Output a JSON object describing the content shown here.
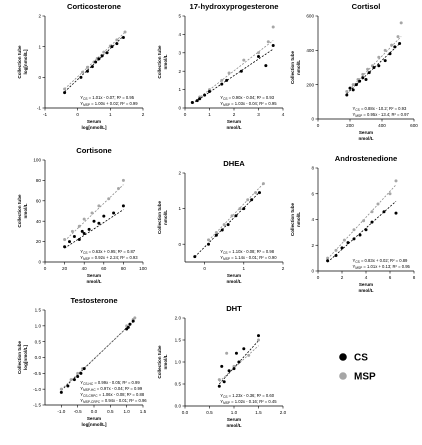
{
  "legend": {
    "items": [
      {
        "label": "CS",
        "color": "#000000"
      },
      {
        "label": "MSP",
        "color": "#a6a6a6"
      }
    ]
  },
  "chart_data": [
    {
      "type": "scatter",
      "title": "Corticosterone",
      "xlabel": [
        "Serum",
        "log[nmol/L]"
      ],
      "ylabel": [
        "Collection tube",
        "log[nmol/L]"
      ],
      "xlim": [
        -1,
        2
      ],
      "ylim": [
        -1,
        2
      ],
      "xticks": [
        -1,
        0,
        1,
        2
      ],
      "yticks": [
        -1,
        0,
        1,
        2
      ],
      "equations": [
        "Y_CS = 1.01x - 0.07; R² = 0.95",
        "Y_MSP = 1.00x + 0.02; R² = 0.99"
      ],
      "series": [
        {
          "name": "CS",
          "slope": 1.01,
          "intercept": -0.07,
          "x": [
            -0.4,
            0.1,
            0.3,
            0.45,
            0.55,
            0.65,
            0.75,
            0.9,
            1.05,
            1.2,
            1.4
          ],
          "y": [
            -0.5,
            0.0,
            0.2,
            0.35,
            0.5,
            0.6,
            0.7,
            0.8,
            1.0,
            1.1,
            1.3
          ]
        },
        {
          "name": "MSP",
          "slope": 1.0,
          "intercept": 0.02,
          "x": [
            -0.4,
            0.15,
            0.3,
            0.5,
            0.6,
            0.8,
            1.0,
            1.2,
            1.45
          ],
          "y": [
            -0.38,
            0.17,
            0.33,
            0.5,
            0.62,
            0.82,
            1.02,
            1.22,
            1.48
          ]
        }
      ]
    },
    {
      "type": "scatter",
      "title": "17-hydroxyprogesterone",
      "xlabel": [
        "Serum",
        "nmol/L"
      ],
      "ylabel": [
        "Collection tube",
        "nmol/L"
      ],
      "xlim": [
        0,
        4
      ],
      "ylim": [
        0,
        5
      ],
      "xticks": [
        0,
        1,
        2,
        3,
        4
      ],
      "yticks": [
        0,
        1,
        2,
        3,
        4,
        5
      ],
      "equations": [
        "Y_CS = 0.90x - 0.04; R² = 0.93",
        "Y_MSP = 1.03x - 0.04; R² = 0.95"
      ],
      "series": [
        {
          "name": "CS",
          "slope": 0.9,
          "intercept": -0.04,
          "x": [
            0.3,
            0.5,
            0.6,
            0.8,
            1.0,
            1.5,
            1.7,
            2.3,
            3.0,
            3.3,
            3.6
          ],
          "y": [
            0.3,
            0.4,
            0.5,
            0.7,
            0.9,
            1.3,
            1.5,
            2.0,
            2.8,
            2.3,
            3.4
          ]
        },
        {
          "name": "MSP",
          "slope": 1.03,
          "intercept": -0.04,
          "x": [
            0.3,
            0.6,
            1.0,
            1.5,
            1.8,
            2.4,
            3.0,
            3.4,
            3.6
          ],
          "y": [
            0.3,
            0.6,
            1.0,
            1.5,
            1.9,
            2.6,
            3.0,
            3.6,
            4.4
          ]
        }
      ]
    },
    {
      "type": "scatter",
      "title": "Cortisol",
      "xlabel": [
        "Serum",
        "nmol/L"
      ],
      "ylabel": [
        "Collection tube",
        "nmol/L"
      ],
      "xlim": [
        0,
        600
      ],
      "ylim": [
        0,
        600
      ],
      "xticks": [
        0,
        200,
        400,
        600
      ],
      "yticks": [
        0,
        200,
        400,
        600
      ],
      "equations": [
        "Y_CS = 0.88x - 10.2; R² = 0.93",
        "Y_MSP = 0.95x - 13.4; R² = 0.97"
      ],
      "series": [
        {
          "name": "CS",
          "slope": 0.88,
          "intercept": -10.2,
          "x": [
            180,
            200,
            220,
            240,
            260,
            280,
            300,
            320,
            350,
            380,
            420,
            450,
            480,
            510
          ],
          "y": [
            140,
            180,
            170,
            200,
            220,
            240,
            230,
            270,
            300,
            310,
            340,
            380,
            420,
            440
          ]
        },
        {
          "name": "MSP",
          "slope": 0.95,
          "intercept": -13.4,
          "x": [
            180,
            220,
            250,
            280,
            310,
            340,
            380,
            420,
            460,
            500,
            520
          ],
          "y": [
            160,
            200,
            230,
            260,
            290,
            310,
            360,
            400,
            430,
            480,
            560
          ]
        }
      ]
    },
    {
      "type": "scatter",
      "title": "Cortisone",
      "xlabel": [
        "Serum",
        "nmol/L"
      ],
      "ylabel": [
        "Collection tube",
        "nmol/L"
      ],
      "xlim": [
        0,
        100
      ],
      "ylim": [
        0,
        100
      ],
      "xticks": [
        0,
        20,
        40,
        60,
        80,
        100
      ],
      "yticks": [
        0,
        20,
        40,
        60,
        80,
        100
      ],
      "equations": [
        "Y_CS = 0.63x + 0.95; R² = 0.87",
        "Y_MSP = 0.92x + 2.24; R² = 0.93"
      ],
      "series": [
        {
          "name": "CS",
          "slope": 0.63,
          "intercept": 0.95,
          "x": [
            20,
            25,
            30,
            35,
            38,
            40,
            45,
            50,
            55,
            60,
            70,
            80
          ],
          "y": [
            15,
            20,
            25,
            22,
            30,
            28,
            32,
            40,
            38,
            45,
            48,
            55
          ]
        },
        {
          "name": "MSP",
          "slope": 0.92,
          "intercept": 2.24,
          "x": [
            20,
            28,
            35,
            40,
            48,
            55,
            65,
            75,
            80
          ],
          "y": [
            22,
            30,
            35,
            42,
            48,
            55,
            62,
            72,
            80
          ]
        }
      ]
    },
    {
      "type": "scatter",
      "title": "DHEA",
      "xlabel": [
        "Serum",
        "nmol/L"
      ],
      "ylabel": [
        "Collection tube",
        "nmol/L"
      ],
      "xlim": [
        -0.5,
        2
      ],
      "ylim": [
        -0.5,
        2
      ],
      "xticks": [
        0,
        1,
        2
      ],
      "yticks": [
        0,
        1,
        2
      ],
      "equations": [
        "Y_CS = 1.10x - 0.08; R² = 0.98",
        "Y_MSP = 1.14x - 0.01; R² = 0.90"
      ],
      "series": [
        {
          "name": "CS",
          "slope": 1.1,
          "intercept": -0.08,
          "x": [
            -0.25,
            0.1,
            0.3,
            0.45,
            0.6,
            0.8,
            1.0,
            1.2,
            1.4
          ],
          "y": [
            -0.35,
            0.0,
            0.25,
            0.4,
            0.55,
            0.8,
            1.0,
            1.25,
            1.45
          ]
        },
        {
          "name": "MSP",
          "slope": 1.14,
          "intercept": -0.01,
          "x": [
            0.1,
            0.3,
            0.5,
            0.7,
            0.9,
            1.1,
            1.3,
            1.5
          ],
          "y": [
            0.12,
            0.33,
            0.55,
            0.8,
            1.0,
            1.25,
            1.45,
            1.7
          ]
        }
      ]
    },
    {
      "type": "scatter",
      "title": "Androstenedione",
      "xlabel": [
        "Serum",
        "nmol/L"
      ],
      "ylabel": [
        "Collection tube",
        "nmol/L"
      ],
      "xlim": [
        0,
        8
      ],
      "ylim": [
        0,
        8
      ],
      "xticks": [
        0,
        2,
        4,
        6,
        8
      ],
      "yticks": [
        0,
        2,
        4,
        6,
        8
      ],
      "equations": [
        "Y_CS = 0.83x + 0.02; R² = 0.89",
        "Y_MSP = 1.01x + 0.13; R² = 0.95"
      ],
      "series": [
        {
          "name": "CS",
          "slope": 0.83,
          "intercept": 0.02,
          "x": [
            0.8,
            1.5,
            2.0,
            2.5,
            3.0,
            3.5,
            4.0,
            4.5,
            5.5,
            6.5
          ],
          "y": [
            0.8,
            1.2,
            1.8,
            2.2,
            2.5,
            2.8,
            3.2,
            3.8,
            4.6,
            4.5
          ]
        },
        {
          "name": "MSP",
          "slope": 1.01,
          "intercept": 0.13,
          "x": [
            0.8,
            1.5,
            2.2,
            3.0,
            3.8,
            4.5,
            5.0,
            6.0,
            6.5
          ],
          "y": [
            1.0,
            1.6,
            2.4,
            3.2,
            3.9,
            4.6,
            5.2,
            6.0,
            7.0
          ]
        }
      ]
    },
    {
      "type": "scatter",
      "title": "Testosterone",
      "xlabel": [
        "Serum",
        "log[nmol/L]"
      ],
      "ylabel": [
        "Collection tube",
        "log[nmol/L]"
      ],
      "xlim": [
        -1.5,
        1.5
      ],
      "ylim": [
        -1.5,
        1.5
      ],
      "xticks": [
        -1.0,
        -0.5,
        0.0,
        0.5,
        1.0,
        1.5
      ],
      "yticks": [
        -1.5,
        -1.0,
        -0.5,
        0.0,
        0.5,
        1.0,
        1.5
      ],
      "equations": [
        "Y_CS-HC = 0.99x - 0.05; R² = 0.99",
        "Y_MSP-HC = 0.97x - 0.04; R² = 0.99",
        "Y_CS-CRPC = 1.06x - 0.08; R² = 0.88",
        "Y_MSP-CRPC = 0.94x - 0.01; R² = 0.96"
      ],
      "series": [
        {
          "name": "CS",
          "slope": 0.99,
          "intercept": -0.05,
          "x": [
            -1.0,
            -0.8,
            -0.6,
            -0.5,
            -0.4,
            -0.3,
            1.0,
            1.05,
            1.1,
            1.2
          ],
          "y": [
            -1.1,
            -0.9,
            -0.7,
            -0.6,
            -0.5,
            -0.35,
            0.9,
            0.95,
            1.05,
            1.15
          ]
        },
        {
          "name": "MSP",
          "slope": 0.97,
          "intercept": -0.04,
          "x": [
            -1.0,
            -0.7,
            -0.5,
            -0.35,
            1.0,
            1.1,
            1.2,
            1.25
          ],
          "y": [
            -1.0,
            -0.7,
            -0.5,
            -0.35,
            1.0,
            1.05,
            1.2,
            1.25
          ]
        }
      ]
    },
    {
      "type": "scatter",
      "title": "DHT",
      "xlabel": [
        "Serum",
        "nmol/L"
      ],
      "ylabel": [
        "Collection tube",
        "nmol/L"
      ],
      "xlim": [
        0.0,
        2.0
      ],
      "ylim": [
        0.0,
        2.0
      ],
      "xticks": [
        0.0,
        0.5,
        1.0,
        1.5,
        2.0
      ],
      "yticks": [
        0.0,
        0.5,
        1.0,
        1.5,
        2.0
      ],
      "equations": [
        "Y_CS = 1.23x - 0.36; R² = 0.60",
        "Y_MSP = 1.02x - 0.16; R² = 0.45"
      ],
      "series": [
        {
          "name": "CS",
          "slope": 1.23,
          "intercept": -0.36,
          "x": [
            0.7,
            0.75,
            0.8,
            0.9,
            1.0,
            1.05,
            1.1,
            1.2,
            1.5
          ],
          "y": [
            0.45,
            0.9,
            0.55,
            0.8,
            0.85,
            1.2,
            1.0,
            1.3,
            1.6
          ]
        },
        {
          "name": "MSP",
          "slope": 1.02,
          "intercept": -0.16,
          "x": [
            0.7,
            0.85,
            1.0,
            1.1,
            1.3,
            1.5
          ],
          "y": [
            0.6,
            1.2,
            0.9,
            1.0,
            1.15,
            1.5
          ]
        }
      ]
    }
  ]
}
